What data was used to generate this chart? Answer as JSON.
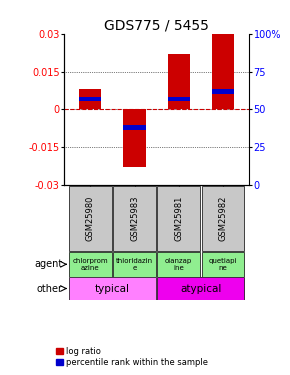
{
  "title": "GDS775 / 5455",
  "samples": [
    "GSM25980",
    "GSM25983",
    "GSM25981",
    "GSM25982"
  ],
  "log_ratios": [
    0.008,
    -0.023,
    0.022,
    0.03
  ],
  "percentile_ranks": [
    0.57,
    0.38,
    0.57,
    0.62
  ],
  "agents": [
    "chlorprom\nazine",
    "thioridazin\ne",
    "olanzap\nine",
    "quetiapi\nne"
  ],
  "ylim": [
    -0.03,
    0.03
  ],
  "yticks_left": [
    -0.03,
    -0.015,
    0,
    0.015,
    0.03
  ],
  "yticks_right": [
    0,
    25,
    50,
    75,
    100
  ],
  "bar_color": "#CC0000",
  "percentile_color": "#0000CC",
  "zero_line_color": "#CC0000",
  "bar_width": 0.5,
  "title_fontsize": 10,
  "tick_fontsize": 7,
  "sample_fontsize": 6,
  "agent_fontsize": 5,
  "other_fontsize": 7.5,
  "legend_fontsize": 6,
  "gray_color": "#C8C8C8",
  "green_color": "#90EE90",
  "typical_color": "#FF80FF",
  "atypical_color": "#EE00EE"
}
